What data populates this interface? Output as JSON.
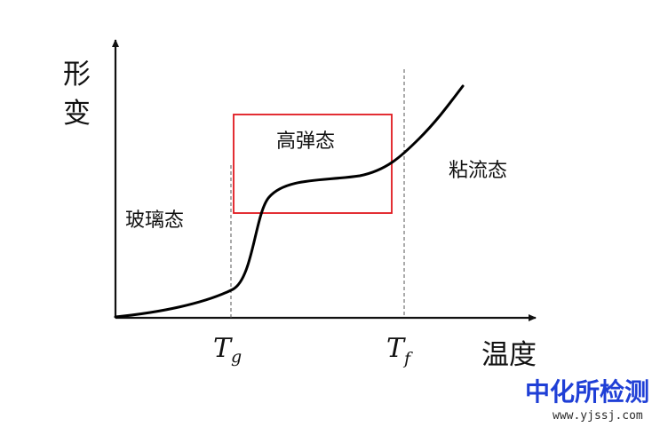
{
  "axes": {
    "y_title_chars": [
      "形",
      "变"
    ],
    "x_title": "温度"
  },
  "ticks": {
    "tg": {
      "symbol": "T",
      "subscript": "g"
    },
    "tf": {
      "symbol": "T",
      "subscript": "f"
    }
  },
  "regions": {
    "glassy": "玻璃态",
    "high_elastic": "高弹态",
    "viscous_flow": "粘流态"
  },
  "watermark": {
    "brand": "中化所检测",
    "url": "www.yjssj.com"
  },
  "colors": {
    "highlight_box": "#e0181e",
    "curve": "#000000",
    "watermark_brand": "#1f3fd6"
  }
}
